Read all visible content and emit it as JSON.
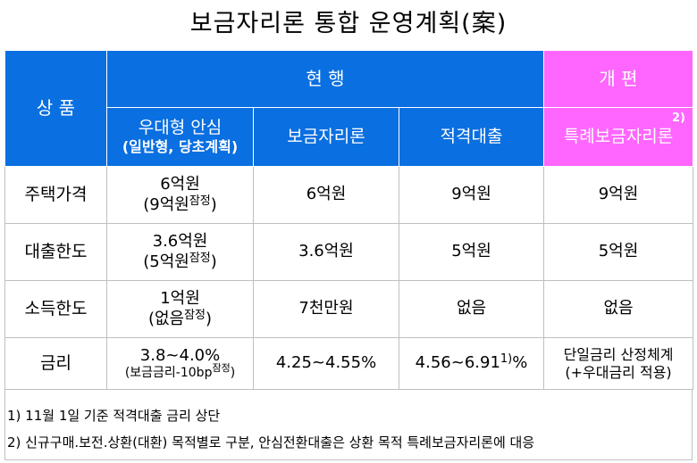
{
  "title": "보금자리론 통합 운영계획(案)",
  "header": {
    "product": "상 품",
    "current": "현 행",
    "reform": "개 편",
    "columns": [
      {
        "line1": "우대형 안심",
        "line2": "(일반형, 당초계획)"
      },
      {
        "line1": "보금자리론"
      },
      {
        "line1": "적격대출"
      },
      {
        "line1": "특례보금자리론",
        "sup": "2)"
      }
    ]
  },
  "rows": [
    {
      "label": "주택가격",
      "c1": "6억원",
      "c1b": "(9억원",
      "c1sup": "잠정",
      "c1c": ")",
      "c2": "6억원",
      "c3": "9억원",
      "c4": "9억원"
    },
    {
      "label": "대출한도",
      "c1": "3.6억원",
      "c1b": "(5억원",
      "c1sup": "잠정",
      "c1c": ")",
      "c2": "3.6억원",
      "c3": "5억원",
      "c4": "5억원"
    },
    {
      "label": "소득한도",
      "c1": "1억원",
      "c1b": "(없음",
      "c1sup": "잠정",
      "c1c": ")",
      "c2": "7천만원",
      "c3": "없음",
      "c4": "없음"
    },
    {
      "label": "금리",
      "c1": "3.8~4.0%",
      "c1b": "(보금금리-10bp",
      "c1sup": "잠정",
      "c1c": ")",
      "c2": "4.25~4.55%",
      "c3": "4.56~6.91",
      "c3sup": "1)",
      "c3c": "%",
      "c4": "단일금리 산정체계",
      "c4b": "(+우대금리 적용)"
    }
  ],
  "notes": [
    "1) 11월 1일 기준 적격대출 금리 상단",
    "2) 신규구매.보전.상환(대환) 목적별로 구분, 안심전환대출은 상환 목적 특례보금자리론에 대응"
  ]
}
